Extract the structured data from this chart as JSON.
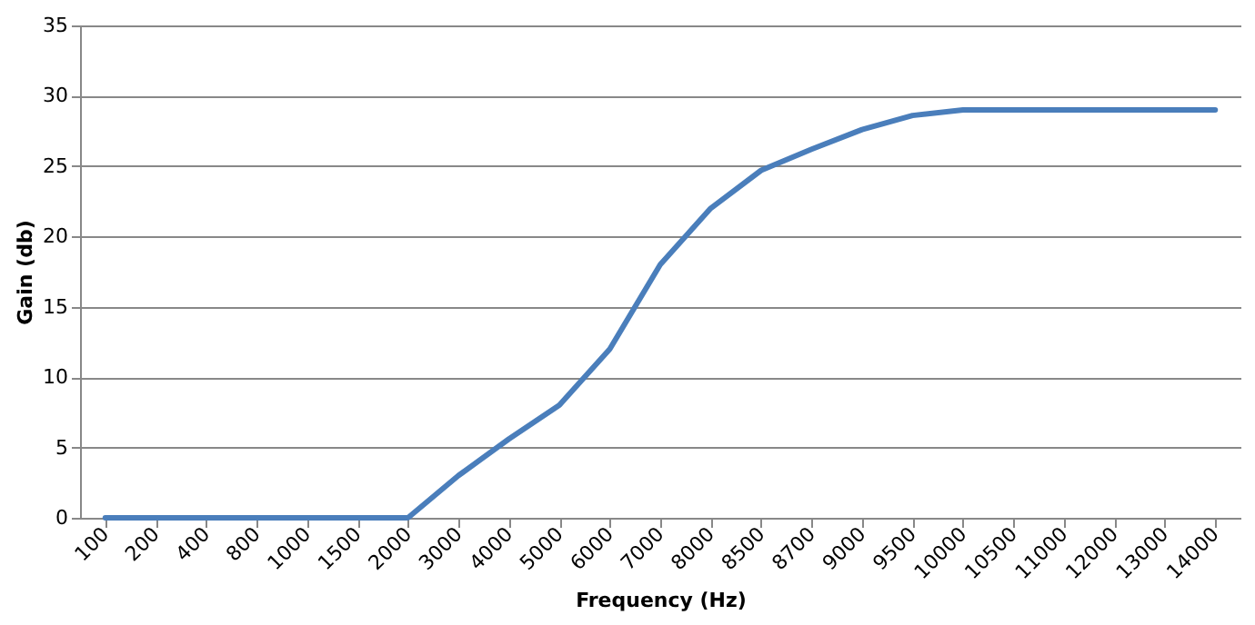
{
  "chart_data": {
    "type": "line",
    "xlabel": "Frequency (Hz)",
    "ylabel": "Gain  (db)",
    "categories": [
      "100",
      "200",
      "400",
      "800",
      "1000",
      "1500",
      "2000",
      "3000",
      "4000",
      "5000",
      "6000",
      "7000",
      "8000",
      "8500",
      "8700",
      "9000",
      "9500",
      "10000",
      "10500",
      "11000",
      "12000",
      "13000",
      "14000"
    ],
    "series": [
      {
        "color": "#4a7ebb",
        "values": [
          0,
          0,
          0,
          0,
          0,
          0,
          0,
          3,
          5.6,
          8,
          12,
          18,
          22,
          24.7,
          26.2,
          27.6,
          28.6,
          29,
          29,
          29,
          29,
          29,
          29
        ]
      }
    ],
    "ylim": [
      0,
      35
    ],
    "yticks": [
      0,
      5,
      10,
      15,
      20,
      25,
      30,
      35
    ],
    "grid": "y",
    "legend": false,
    "marker": "none",
    "line_style": "solid"
  }
}
